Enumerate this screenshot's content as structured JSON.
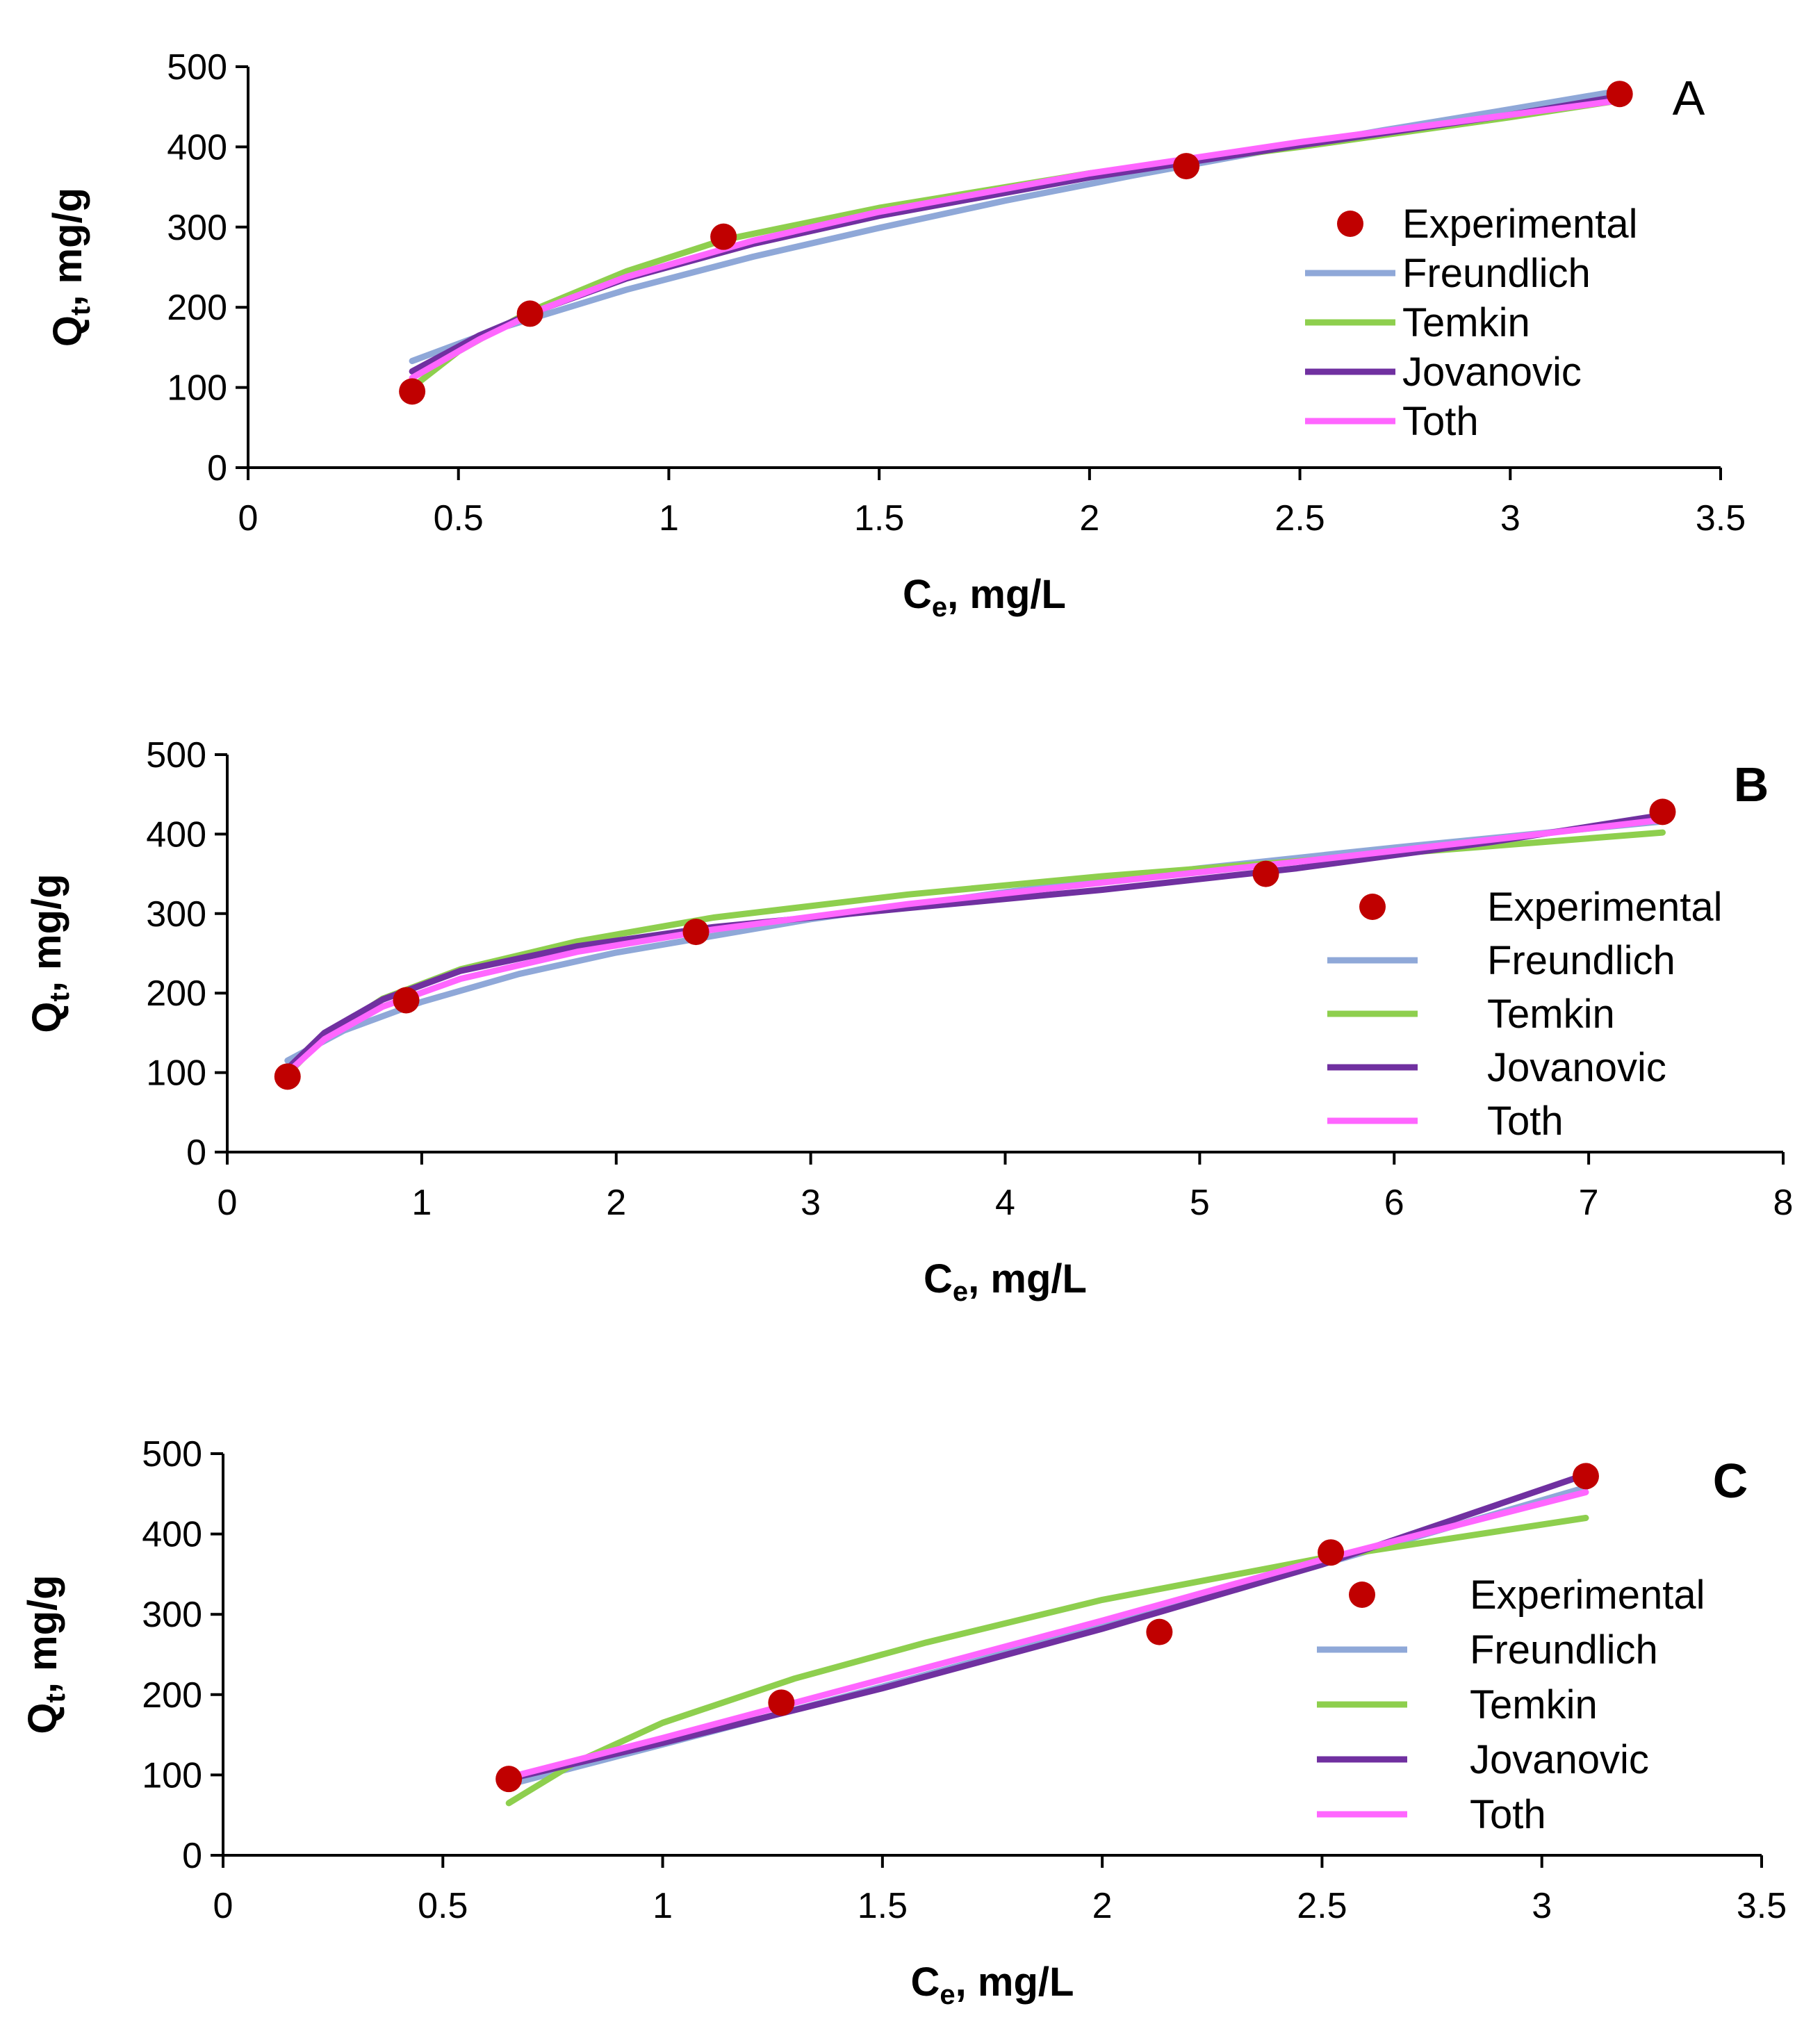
{
  "colors": {
    "Experimental": "#c00000",
    "Freundlich": "#8fa8d8",
    "Temkin": "#8ecf4e",
    "Jovanovic": "#7030a0",
    "Toth": "#ff66ff"
  },
  "chart_data": [
    {
      "type": "line",
      "panel_label": "A",
      "panel_label_bold": false,
      "xlabel": "C",
      "xlabel_sub": "e",
      "xlabel_rest": ", mg/L",
      "ylabel": "Q",
      "ylabel_sub": "t",
      "ylabel_rest": ", mg/g",
      "xlim": [
        0,
        3.5
      ],
      "ylim": [
        0,
        500
      ],
      "xticks": [
        0,
        0.5,
        1,
        1.5,
        2,
        2.5,
        3,
        3.5
      ],
      "xtick_labels": [
        "0",
        "0.5",
        "1",
        "1.5",
        "2",
        "2.5",
        "3",
        "3.5"
      ],
      "yticks": [
        0,
        100,
        200,
        300,
        400,
        500
      ],
      "ytick_labels": [
        "0",
        "100",
        "200",
        "300",
        "400",
        "500"
      ],
      "legend": [
        "Experimental",
        "Freundlich",
        "Temkin",
        "Jovanovic",
        "Toth"
      ],
      "experimental": {
        "x": [
          0.39,
          0.67,
          1.13,
          2.23,
          3.26
        ],
        "y": [
          95,
          192,
          288,
          376,
          466
        ]
      },
      "series": [
        {
          "name": "Freundlich",
          "x": [
            0.39,
            0.6,
            0.9,
            1.2,
            1.5,
            1.8,
            2.1,
            2.4,
            2.7,
            3.0,
            3.26
          ],
          "y": [
            133,
            174,
            222,
            263,
            299,
            333,
            364,
            393,
            421,
            447,
            470
          ]
        },
        {
          "name": "Temkin",
          "x": [
            0.39,
            0.5,
            0.67,
            0.9,
            1.13,
            1.5,
            2.0,
            2.5,
            3.0,
            3.26
          ],
          "y": [
            100,
            145,
            195,
            245,
            284,
            324,
            367,
            400,
            437,
            458
          ]
        },
        {
          "name": "Jovanovic",
          "x": [
            0.39,
            0.55,
            0.7,
            0.9,
            1.2,
            1.5,
            2.0,
            2.5,
            3.0,
            3.26
          ],
          "y": [
            120,
            165,
            198,
            236,
            279,
            314,
            362,
            402,
            440,
            463
          ]
        },
        {
          "name": "Toth",
          "x": [
            0.39,
            0.55,
            0.7,
            0.9,
            1.2,
            1.5,
            2.0,
            2.5,
            3.0,
            3.26
          ],
          "y": [
            112,
            160,
            198,
            238,
            283,
            319,
            367,
            406,
            440,
            458
          ]
        }
      ]
    },
    {
      "type": "line",
      "panel_label": "B",
      "panel_label_bold": true,
      "xlabel": "C",
      "xlabel_sub": "e",
      "xlabel_rest": ", mg/L",
      "ylabel": "Q",
      "ylabel_sub": "t",
      "ylabel_rest": ", mg/g",
      "xlim": [
        0,
        8
      ],
      "ylim": [
        0,
        500
      ],
      "xticks": [
        0,
        1,
        2,
        3,
        4,
        5,
        6,
        7,
        8
      ],
      "xtick_labels": [
        "0",
        "1",
        "2",
        "3",
        "4",
        "5",
        "6",
        "7",
        "8"
      ],
      "yticks": [
        0,
        100,
        200,
        300,
        400,
        500
      ],
      "ytick_labels": [
        "0",
        "100",
        "200",
        "300",
        "400",
        "500"
      ],
      "legend": [
        "Experimental",
        "Freundlich",
        "Temkin",
        "Jovanovic",
        "Toth"
      ],
      "experimental": {
        "x": [
          0.31,
          0.92,
          2.41,
          5.34,
          7.38
        ],
        "y": [
          95,
          191,
          277,
          350,
          428
        ]
      },
      "series": [
        {
          "name": "Freundlich",
          "x": [
            0.31,
            0.6,
            1.0,
            1.5,
            2.0,
            3.0,
            4.0,
            5.0,
            6.0,
            7.0,
            7.38
          ],
          "y": [
            115,
            153,
            189,
            224,
            251,
            293,
            327,
            357,
            383,
            407,
            416
          ]
        },
        {
          "name": "Temkin",
          "x": [
            0.31,
            0.5,
            0.8,
            1.2,
            1.8,
            2.5,
            3.5,
            4.5,
            5.5,
            6.5,
            7.38
          ],
          "y": [
            98,
            145,
            193,
            230,
            265,
            295,
            324,
            347,
            366,
            385,
            402
          ]
        },
        {
          "name": "Jovanovic",
          "x": [
            0.31,
            0.5,
            0.8,
            1.2,
            1.8,
            2.5,
            3.5,
            4.5,
            5.5,
            6.5,
            7.38
          ],
          "y": [
            105,
            150,
            192,
            228,
            259,
            283,
            307,
            330,
            357,
            390,
            424
          ]
        },
        {
          "name": "Toth",
          "x": [
            0.31,
            0.5,
            0.8,
            1.2,
            1.8,
            2.5,
            3.5,
            4.5,
            5.5,
            6.5,
            7.38
          ],
          "y": [
            100,
            142,
            183,
            218,
            252,
            280,
            312,
            339,
            365,
            393,
            418
          ]
        }
      ]
    },
    {
      "type": "line",
      "panel_label": "C",
      "panel_label_bold": true,
      "xlabel": "C",
      "xlabel_sub": "e",
      "xlabel_rest": ", mg/L",
      "ylabel": "Q",
      "ylabel_sub": "t",
      "ylabel_rest": ", mg/g",
      "xlim": [
        0,
        3.5
      ],
      "ylim": [
        0,
        500
      ],
      "xticks": [
        0,
        0.5,
        1,
        1.5,
        2,
        2.5,
        3,
        3.5
      ],
      "xtick_labels": [
        "0",
        "0.5",
        "1",
        "1.5",
        "2",
        "2.5",
        "3",
        "3.5"
      ],
      "yticks": [
        0,
        100,
        200,
        300,
        400,
        500
      ],
      "ytick_labels": [
        "0",
        "100",
        "200",
        "300",
        "400",
        "500"
      ],
      "legend": [
        "Experimental",
        "Freundlich",
        "Temkin",
        "Jovanovic",
        "Toth"
      ],
      "experimental": {
        "x": [
          0.65,
          1.27,
          2.13,
          2.52,
          3.1
        ],
        "y": [
          95,
          190,
          278,
          377,
          472
        ]
      },
      "series": [
        {
          "name": "Freundlich",
          "x": [
            0.65,
            1.0,
            1.5,
            2.0,
            2.5,
            3.1
          ],
          "y": [
            88,
            138,
            210,
            285,
            362,
            458
          ]
        },
        {
          "name": "Temkin",
          "x": [
            0.65,
            0.8,
            1.0,
            1.3,
            1.6,
            2.0,
            2.5,
            3.1
          ],
          "y": [
            65,
            115,
            165,
            220,
            265,
            318,
            370,
            420
          ]
        },
        {
          "name": "Jovanovic",
          "x": [
            0.65,
            1.0,
            1.5,
            2.0,
            2.5,
            3.1
          ],
          "y": [
            95,
            140,
            208,
            282,
            362,
            474
          ]
        },
        {
          "name": "Toth",
          "x": [
            0.65,
            1.0,
            1.5,
            2.0,
            2.5,
            3.1
          ],
          "y": [
            97,
            146,
            219,
            292,
            368,
            452
          ]
        }
      ]
    }
  ]
}
